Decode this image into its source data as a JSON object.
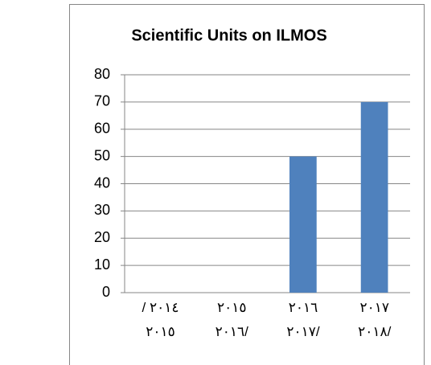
{
  "chart_data": {
    "type": "bar",
    "title": "Scientific Units on ILMOS",
    "categories": [
      "/ ٢٠١٤\n٢٠١٥",
      "٢٠١٥\n٢٠١٦/",
      "٢٠١٦\n٢٠١٧/",
      "٢٠١٧\n٢٠١٨/"
    ],
    "values": [
      0,
      0,
      50,
      70
    ],
    "color": "#4f81bd",
    "ylim": [
      0,
      80
    ],
    "yticks": [
      0,
      10,
      20,
      30,
      40,
      50,
      60,
      70,
      80
    ],
    "grid": true
  }
}
